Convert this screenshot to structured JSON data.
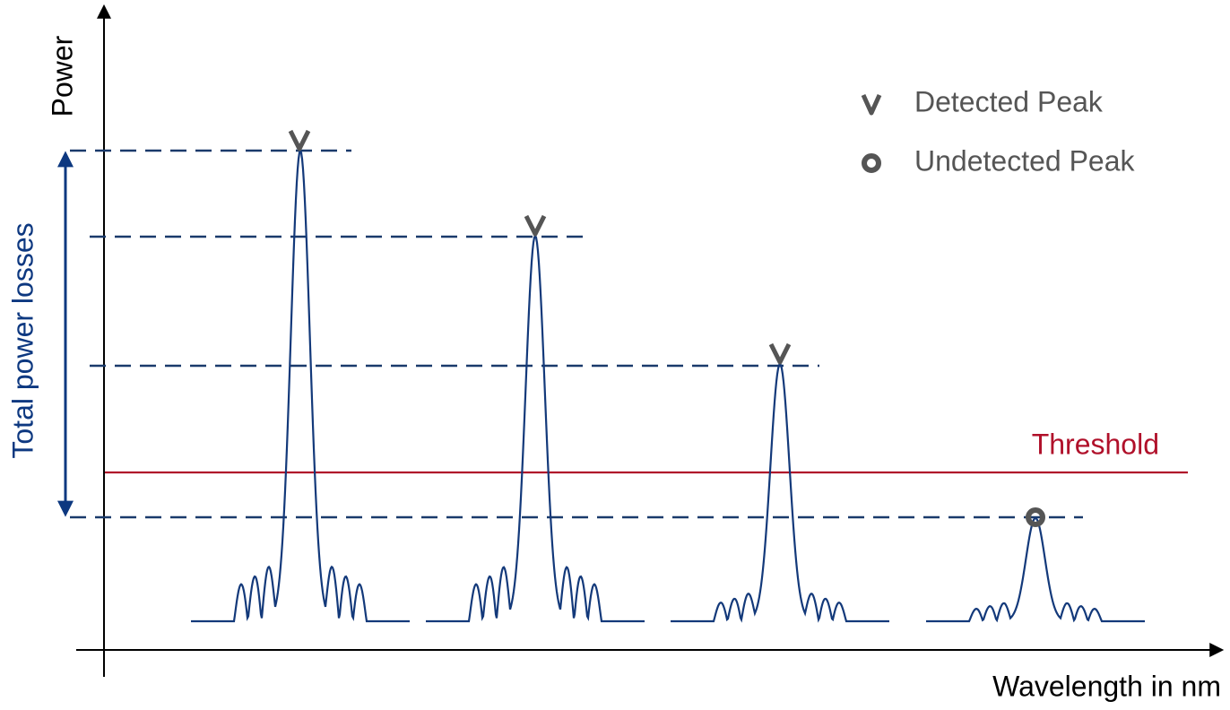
{
  "axes": {
    "y_label": "Power",
    "x_label": "Wavelength in nm"
  },
  "annotations": {
    "range_label": "Total power losses",
    "threshold_label": "Threshold"
  },
  "legend": [
    {
      "label": "Detected Peak"
    },
    {
      "label": "Undetected Peak"
    }
  ]
}
